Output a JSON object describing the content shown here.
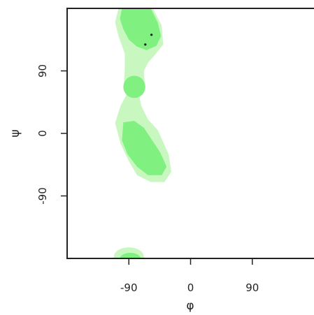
{
  "chart_data": {
    "type": "contour",
    "title": "",
    "xlabel": "φ",
    "ylabel": "ψ",
    "xlim": [
      -180,
      180
    ],
    "ylim": [
      -180,
      180
    ],
    "x_ticks": [
      -90,
      0,
      90
    ],
    "y_ticks": [
      -90,
      0,
      90
    ],
    "x_tick_labels": [
      "-90",
      "0",
      "90"
    ],
    "y_tick_labels": [
      "-90",
      "0",
      "90"
    ],
    "grid": false,
    "legend": "none",
    "colors": {
      "generously_allowed": "#c8f7c0",
      "favored": "#80f080",
      "points": "#111111",
      "frame": "#222222"
    },
    "regions": [
      {
        "level": "generously_allowed",
        "shape": "polygon",
        "points": [
          [
            -105,
            180
          ],
          [
            -55,
            180
          ],
          [
            -42,
            155
          ],
          [
            -40,
            128
          ],
          [
            -52,
            113
          ],
          [
            -62,
            102
          ],
          [
            -68,
            90
          ],
          [
            -67,
            72
          ],
          [
            -75,
            55
          ],
          [
            -72,
            40
          ],
          [
            -62,
            20
          ],
          [
            -48,
            5
          ],
          [
            -32,
            -30
          ],
          [
            -28,
            -55
          ],
          [
            -38,
            -70
          ],
          [
            -58,
            -70
          ],
          [
            -78,
            -60
          ],
          [
            -90,
            -40
          ],
          [
            -102,
            -15
          ],
          [
            -110,
            15
          ],
          [
            -102,
            40
          ],
          [
            -92,
            58
          ],
          [
            -97,
            75
          ],
          [
            -96,
            92
          ],
          [
            -96,
            115
          ],
          [
            -105,
            140
          ],
          [
            -110,
            160
          ]
        ]
      },
      {
        "level": "generously_allowed",
        "shape": "ellipse",
        "center": [
          -90,
          -178
        ],
        "radii": [
          22,
          14
        ]
      },
      {
        "level": "favored",
        "shape": "polygon",
        "points": [
          [
            -100,
            180
          ],
          [
            -58,
            180
          ],
          [
            -48,
            160
          ],
          [
            -43,
            140
          ],
          [
            -50,
            126
          ],
          [
            -64,
            120
          ],
          [
            -78,
            125
          ],
          [
            -90,
            135
          ],
          [
            -98,
            150
          ],
          [
            -103,
            165
          ]
        ]
      },
      {
        "level": "favored",
        "shape": "ellipse",
        "center": [
          -82,
          67
        ],
        "radii": [
          16,
          16
        ]
      },
      {
        "level": "favored",
        "shape": "polygon",
        "points": [
          [
            -98,
            16
          ],
          [
            -82,
            18
          ],
          [
            -68,
            8
          ],
          [
            -56,
            -10
          ],
          [
            -44,
            -28
          ],
          [
            -35,
            -48
          ],
          [
            -42,
            -60
          ],
          [
            -62,
            -60
          ],
          [
            -78,
            -48
          ],
          [
            -92,
            -30
          ],
          [
            -100,
            -10
          ]
        ]
      },
      {
        "level": "favored",
        "shape": "ellipse",
        "center": [
          -88,
          -180
        ],
        "radii": [
          15,
          8
        ]
      }
    ],
    "points": [
      {
        "x": -57,
        "y": 142
      },
      {
        "x": -66,
        "y": 128
      }
    ]
  }
}
